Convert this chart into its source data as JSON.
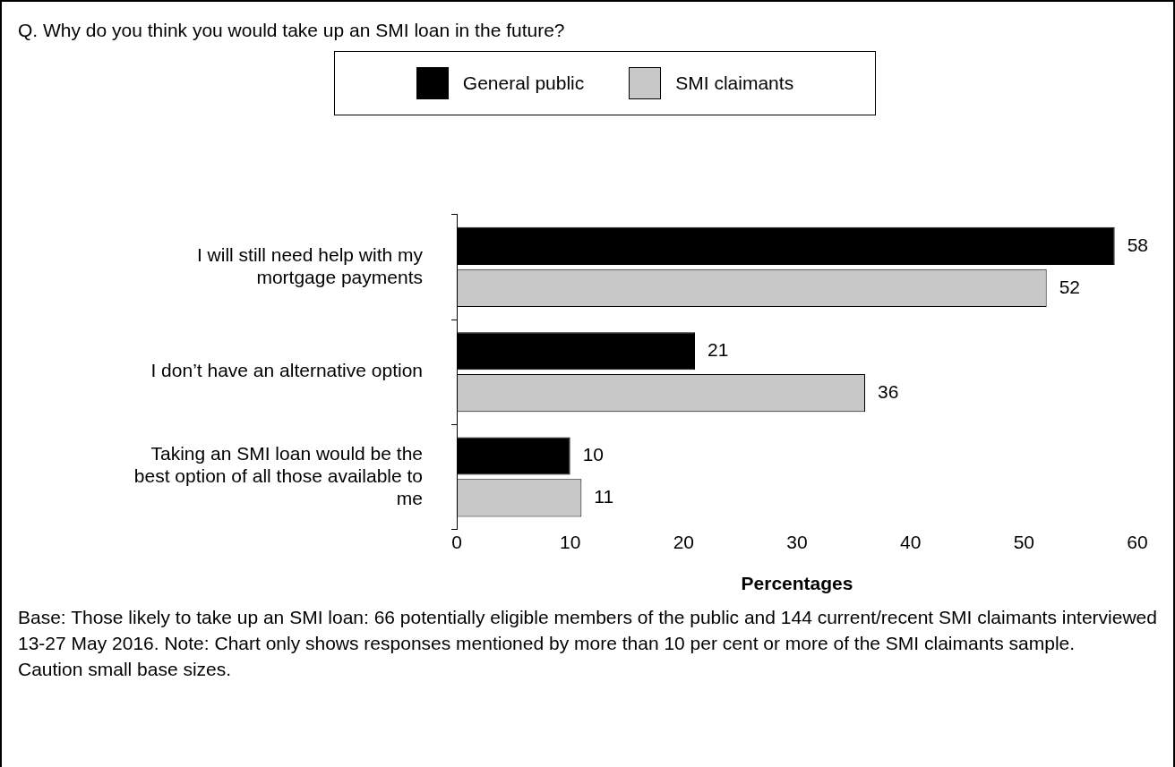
{
  "chart_data": {
    "type": "bar",
    "orientation": "horizontal",
    "title": "Q. Why do you think you would take up an SMI loan in the future?",
    "xlabel": "Percentages",
    "categories": [
      "I will still need help with my mortgage payments",
      "I don’t have an alternative option",
      "Taking an SMI loan would be the best option of all those available to me"
    ],
    "series": [
      {
        "name": "General public",
        "color": "#000000",
        "values": [
          58,
          21,
          10
        ]
      },
      {
        "name": "SMI claimants",
        "color": "#c8c8c8",
        "values": [
          52,
          36,
          11
        ]
      }
    ],
    "xlim": [
      0,
      60
    ],
    "xticks": [
      0,
      10,
      20,
      30,
      40,
      50,
      60
    ],
    "data_labels": true,
    "legend": "top",
    "grid": false,
    "annotations": [
      "Base: Those likely to take up an SMI loan: 66 potentially eligible members of the public and 144 current/recent SMI claimants interviewed 13-27 May 2016. Note: Chart only shows responses mentioned by more than 10 per cent or more of the SMI claimants sample.",
      "Caution small base sizes."
    ]
  }
}
